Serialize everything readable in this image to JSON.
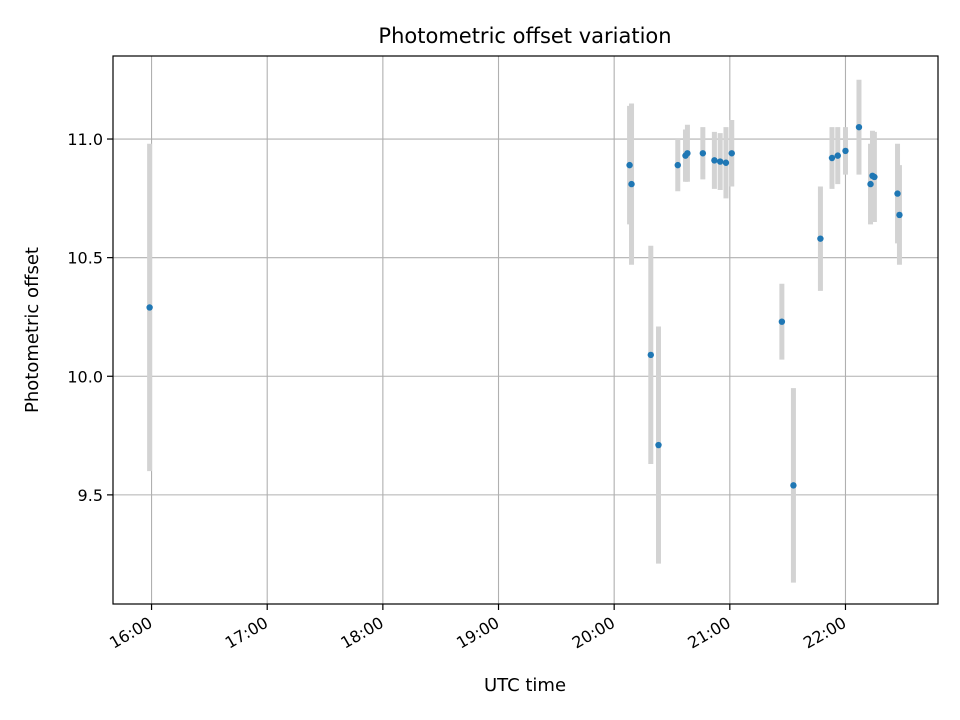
{
  "chart_data": {
    "type": "scatter",
    "title": "Photometric offset variation",
    "xlabel": "UTC time",
    "ylabel": "Photometric offset",
    "xlim": [
      "15:40",
      "22:48"
    ],
    "ylim": [
      9.04,
      11.35
    ],
    "x_ticks": [
      "16:00",
      "17:00",
      "18:00",
      "19:00",
      "20:00",
      "21:00",
      "22:00"
    ],
    "y_ticks": [
      9.5,
      10.0,
      10.5,
      11.0
    ],
    "y_tick_labels": [
      "9.5",
      "10.0",
      "10.5",
      "11.0"
    ],
    "grid": true,
    "marker_color": "#1f77b4",
    "errorbar_color": "#d3d3d3",
    "points": [
      {
        "x": "15:59",
        "y": 10.29,
        "err": 0.69
      },
      {
        "x": "20:08",
        "y": 10.89,
        "err": 0.25
      },
      {
        "x": "20:09",
        "y": 10.81,
        "err": 0.34
      },
      {
        "x": "20:19",
        "y": 10.09,
        "err": 0.46
      },
      {
        "x": "20:23",
        "y": 9.71,
        "err": 0.5
      },
      {
        "x": "20:33",
        "y": 10.89,
        "err": 0.11
      },
      {
        "x": "20:37",
        "y": 10.93,
        "err": 0.11
      },
      {
        "x": "20:38",
        "y": 10.94,
        "err": 0.12
      },
      {
        "x": "20:46",
        "y": 10.94,
        "err": 0.11
      },
      {
        "x": "20:52",
        "y": 10.91,
        "err": 0.12
      },
      {
        "x": "20:55",
        "y": 10.905,
        "err": 0.12
      },
      {
        "x": "20:58",
        "y": 10.9,
        "err": 0.15
      },
      {
        "x": "21:01",
        "y": 10.94,
        "err": 0.14
      },
      {
        "x": "21:27",
        "y": 10.23,
        "err": 0.16
      },
      {
        "x": "21:33",
        "y": 9.54,
        "err": 0.41
      },
      {
        "x": "21:47",
        "y": 10.58,
        "err": 0.22
      },
      {
        "x": "21:53",
        "y": 10.92,
        "err": 0.13
      },
      {
        "x": "21:56",
        "y": 10.93,
        "err": 0.12
      },
      {
        "x": "22:00",
        "y": 10.95,
        "err": 0.1
      },
      {
        "x": "22:07",
        "y": 11.05,
        "err": 0.2
      },
      {
        "x": "22:13",
        "y": 10.81,
        "err": 0.17
      },
      {
        "x": "22:14",
        "y": 10.845,
        "err": 0.19
      },
      {
        "x": "22:15",
        "y": 10.84,
        "err": 0.19
      },
      {
        "x": "22:27",
        "y": 10.77,
        "err": 0.21
      },
      {
        "x": "22:28",
        "y": 10.68,
        "err": 0.21
      }
    ]
  }
}
